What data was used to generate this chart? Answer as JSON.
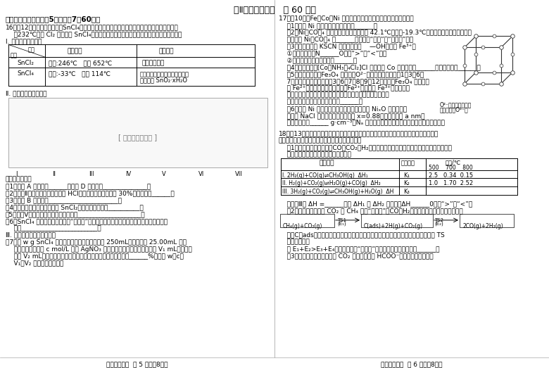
{
  "title": "第Ⅱ卷（非选择题   共 60 分）",
  "bg_color": "#ffffff",
  "section_header": "三、非选择题：本题共5小题，共7兠60分。",
  "q16_title": "16．（12分）无水四氯化锡（SnCl₄）常用作有机合成的氯化催化剂。实验室可用熔融的锡（熔",
  "q16_line2": "    点232℃）与 Cl₂ 反应制备 SnCl₄，某小组拟设计实验制备无水四氯化锡并探究其性质：",
  "q16_I": "Ⅰ. 查阅资料，得知：",
  "q16_II": "Ⅱ. 设计实验，装置如图",
  "q16_III": "Ⅲ. 最后进行产品纯度测定：",
  "qa_header": "回答下列问题：",
  "qa1": "（1）仪器 A 的名称是______，导管 D 的作用是______________。",
  "qa2": "（2）装置Ⅱ的用途是除去氯气中的 HCl，用平衡移动原理解释 30%硫酸的作用______。",
  "qa3": "（3）试剂 B 的作用是______________________。",
  "qa4": "（4）为防止产品中混入副产物 SnCl₂，可采取的措施有__________。",
  "qa5": "（5）装置Ⅴ采用多孔耗高温滤泡的目的是____________________。",
  "qa6": "（6）SnCl₄ 遇氯气，水蔟气产生“液白烟”，因此可用来制作烟幕弹。用化学方程式表示其",
  "qa6b": "    原理________________________。",
  "qa7": "（7）取 w g SnCl₄ 产品用谱蒸馅水收得到吸收液 250mL，准确量取 25.00mL 吸收",
  "qa7b": "    液于锥形瓶中，用 c mol/L 标准 AgNO₃ 溶液滴定至终点，滴定前读数为 V₁ mL，终点读",
  "qa7c": "    数为 V₂ mL（忽略本参与反应），利用上述数据计算产品纯度为______%（用含 w，c，",
  "qa7d": "    V₁，V₂ 的代数式表示）。",
  "footer_left": "高三化学试题  第 5 页（共8页）",
  "q17_title": "17．（10分）Fe，Co，Ni 是几种重要的金属元素。请回答下列问题：",
  "q17_1": "    （1）基态 Ni 原子的价电子排布式为______。",
  "q17_2": "    （2）Ni（CO）₄ 常温下为无色液体，沸点 42.1℃，熔点-19.3℃，难溶于水，易溶于有机溶",
  "q17_2b": "    剂。推测 Ni（CO）₄ 是______分子（填“极性”或“非极性”）。",
  "q17_3": "    （3）实验室常用 KSCN 溶液或苯酔（    —OH）检验 Fe³⁺。",
  "q17_3a": "    ①第一电离能：N______O（填“>”或“<”）。",
  "q17_3b": "    ②苯酔中碳原子杂化类型为______。",
  "q17_4": "    （4）配位化合物[Co（NH₃）₄Cl₂]Cl 中心原子 Co 的配位数为______，配位原子为______。",
  "q17_5": "    （5）如右图所示，Fe₃O₄ 晶体中，O²⁻围成正四面体空隙（1，3，6，",
  "q17_5b": "    7围成）和正八面体空隙（3，6，7，8，9，12围成），Fe₃O₄ 中有一半",
  "q17_5c": "    的 Fe²⁺填充在正四面体空隙中，Fe²⁺和另一半 Fe³⁺填充在正八",
  "q17_5d": "    面体空隙中，则没有填充阳离子的正四面体空隙数与没有填充",
  "q17_5e": "    阳离子的正八面体空隙数之比为______。",
  "q17_6": "    （6）已知 Ni 可以形成多种氧化物，其中一种 NiₓO 晶体的晶胞",
  "q17_6b": "    结构为 NaCl 型，由于晶体缺陷导致 x=0.88，晶胞参数为 a nm，",
  "q17_6c": "    测晶体密度为______ g·cm⁻³（Nₐ 表示阿伏加德罗常数的値，只需列出表达式）。",
  "crystal_label1": "O²⁻的重复排列方式",
  "crystal_label2": "（白球表示O²⁻）",
  "q18_title": "18．（13分）二氧化碓的排放越来越受到能源和环境领域的关注，其综合利用是目前研究的",
  "q18_title2": "重要课题之一，试运用所学知识，解决以下问题：",
  "q18_1": "    （1）工业上利用合成气（CO，CO₂，H₂）来生产甲醇，有关反应的热化学方程式及其在不",
  "q18_1b": "    同温度下的化学平衡常数如下表所示：",
  "q18_1c": "    则反应Ⅲ的 ΔH =______（用 ΔH₁ 和 ΔH₂ 表示），ΔH______0（填“>”或“<”）",
  "q18_2": "    （2）科学家提出利用 CO₂ 与 CH₄ 制备“合成气”（CO，H₂），可能的反应历程如图所示：",
  "q18_2b": "    注：C（ads）为碳质活性炭，方框内包含微粒种类及数目，微粒的相对总能量，其中 TS",
  "q18_2c": "    表示过渡态。",
  "q18_2d": "    若 E₁+E₂>E₃+E₄，则决定制备“合成气”反应速率的化学方程式为______。",
  "q18_3": "    （3）利用电化学方法可以将 CO₂ 有效地转化为 HCOO⁻，装置如下图所示：",
  "footer_right": "高三化学试题  第 6 页（共8页）"
}
